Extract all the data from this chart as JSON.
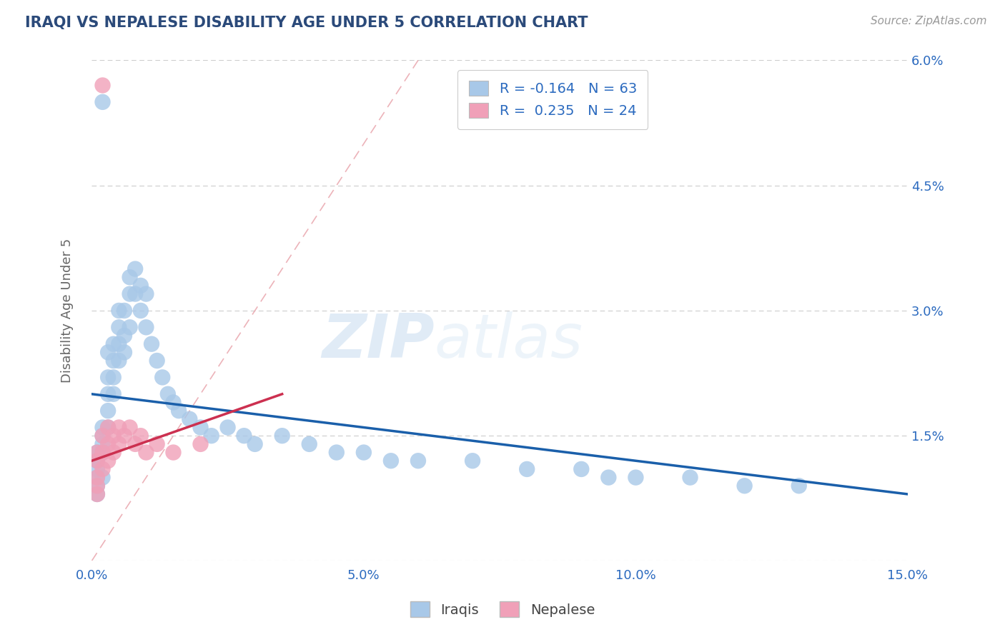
{
  "title": "IRAQI VS NEPALESE DISABILITY AGE UNDER 5 CORRELATION CHART",
  "source": "Source: ZipAtlas.com",
  "ylabel": "Disability Age Under 5",
  "xlim": [
    0,
    0.15
  ],
  "ylim": [
    0,
    0.06
  ],
  "xticks": [
    0.0,
    0.05,
    0.1,
    0.15
  ],
  "xticklabels": [
    "0.0%",
    "5.0%",
    "10.0%",
    "15.0%"
  ],
  "yticks": [
    0.0,
    0.015,
    0.03,
    0.045,
    0.06
  ],
  "yticklabels": [
    "",
    "1.5%",
    "3.0%",
    "4.5%",
    "6.0%"
  ],
  "iraqi_color": "#a8c8e8",
  "nepalese_color": "#f0a0b8",
  "iraqi_line_color": "#1a5faa",
  "nepalese_line_color": "#cc3050",
  "iraqi_R": -0.164,
  "iraqi_N": 63,
  "nepalese_R": 0.235,
  "nepalese_N": 24,
  "legend_label_iraqi": "Iraqis",
  "legend_label_nepalese": "Nepalese",
  "watermark_zip": "ZIP",
  "watermark_atlas": "atlas",
  "background_color": "#ffffff",
  "grid_color": "#cccccc",
  "title_color": "#2b4a7a",
  "axis_label_color": "#666666",
  "tick_color": "#2b6abf",
  "legend_text_color": "#2b6abf",
  "diag_line_color": "#e8a0a8",
  "iraqi_x": [
    0.001,
    0.001,
    0.001,
    0.001,
    0.001,
    0.001,
    0.002,
    0.002,
    0.002,
    0.002,
    0.002,
    0.003,
    0.003,
    0.003,
    0.003,
    0.003,
    0.004,
    0.004,
    0.004,
    0.004,
    0.005,
    0.005,
    0.005,
    0.005,
    0.006,
    0.006,
    0.006,
    0.007,
    0.007,
    0.007,
    0.008,
    0.008,
    0.009,
    0.009,
    0.01,
    0.01,
    0.011,
    0.012,
    0.013,
    0.014,
    0.015,
    0.016,
    0.018,
    0.02,
    0.022,
    0.025,
    0.028,
    0.03,
    0.035,
    0.04,
    0.045,
    0.05,
    0.055,
    0.06,
    0.07,
    0.08,
    0.09,
    0.095,
    0.1,
    0.11,
    0.12,
    0.13,
    0.002
  ],
  "iraqi_y": [
    0.01,
    0.012,
    0.013,
    0.008,
    0.009,
    0.011,
    0.014,
    0.015,
    0.01,
    0.013,
    0.016,
    0.016,
    0.018,
    0.02,
    0.022,
    0.025,
    0.02,
    0.022,
    0.024,
    0.026,
    0.026,
    0.024,
    0.028,
    0.03,
    0.025,
    0.027,
    0.03,
    0.028,
    0.032,
    0.034,
    0.032,
    0.035,
    0.03,
    0.033,
    0.028,
    0.032,
    0.026,
    0.024,
    0.022,
    0.02,
    0.019,
    0.018,
    0.017,
    0.016,
    0.015,
    0.016,
    0.015,
    0.014,
    0.015,
    0.014,
    0.013,
    0.013,
    0.012,
    0.012,
    0.012,
    0.011,
    0.011,
    0.01,
    0.01,
    0.01,
    0.009,
    0.009,
    0.055
  ],
  "nepalese_x": [
    0.001,
    0.001,
    0.001,
    0.001,
    0.001,
    0.002,
    0.002,
    0.002,
    0.003,
    0.003,
    0.003,
    0.004,
    0.004,
    0.005,
    0.005,
    0.006,
    0.007,
    0.008,
    0.009,
    0.01,
    0.012,
    0.015,
    0.02,
    0.002
  ],
  "nepalese_y": [
    0.008,
    0.01,
    0.012,
    0.013,
    0.009,
    0.011,
    0.013,
    0.015,
    0.012,
    0.014,
    0.016,
    0.013,
    0.015,
    0.014,
    0.016,
    0.015,
    0.016,
    0.014,
    0.015,
    0.013,
    0.014,
    0.013,
    0.014,
    0.057
  ],
  "iraqi_line_x0": 0.0,
  "iraqi_line_y0": 0.02,
  "iraqi_line_x1": 0.15,
  "iraqi_line_y1": 0.008,
  "nepalese_line_x0": 0.0,
  "nepalese_line_y0": 0.012,
  "nepalese_line_x1": 0.035,
  "nepalese_line_y1": 0.02
}
